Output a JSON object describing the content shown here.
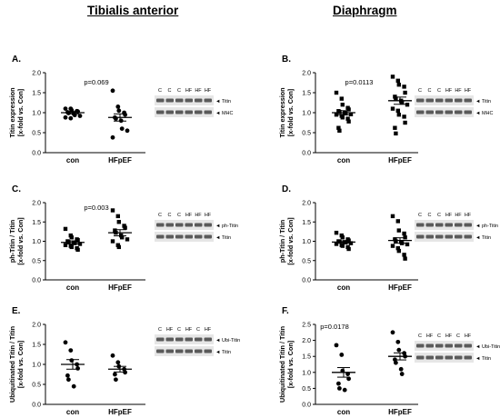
{
  "column_titles": [
    "Tibialis anterior",
    "Diaphragm"
  ],
  "colors": {
    "points": "#000000",
    "axes": "#000000",
    "blot_band": "#5a5a5a",
    "blot_background": "#e6e6e6"
  },
  "chart_data": [
    {
      "id": "A",
      "panel_label": "A.",
      "type": "scatter",
      "marker": "circle",
      "categories": [
        "con",
        "HFpEF"
      ],
      "ylabel": [
        "Titin expression",
        "[x-fold vs. Con]"
      ],
      "ylim": [
        0,
        2.0
      ],
      "yticks": [
        0.0,
        0.5,
        1.0,
        1.5,
        2.0
      ],
      "annotation": "p=0.069",
      "series": [
        {
          "category": "con",
          "values": [
            1.1,
            1.1,
            1.06,
            1.04,
            1.03,
            1.01,
            0.99,
            0.97,
            0.94,
            0.92,
            0.88,
            0.86
          ],
          "mean": 1.0,
          "sem": 0.03
        },
        {
          "category": "HFpEF",
          "values": [
            1.55,
            1.15,
            1.05,
            1.0,
            0.95,
            0.88,
            0.85,
            0.8,
            0.6,
            0.55,
            0.38
          ],
          "mean": 0.88,
          "sem": 0.09
        }
      ],
      "blot": {
        "lanes": [
          "C",
          "C",
          "C",
          "HF",
          "HF",
          "HF"
        ],
        "bands": [
          "Titin",
          "MHC"
        ]
      }
    },
    {
      "id": "B",
      "panel_label": "B.",
      "type": "scatter",
      "marker": "square",
      "categories": [
        "con",
        "HFpEF"
      ],
      "ylabel": [
        "Titin expression",
        "[x-fold vs. Con]"
      ],
      "ylim": [
        0,
        2.0
      ],
      "yticks": [
        0.0,
        0.5,
        1.0,
        1.5,
        2.0
      ],
      "annotation": "p=0.0113",
      "series": [
        {
          "category": "con",
          "values": [
            1.5,
            1.35,
            1.2,
            1.12,
            1.08,
            1.04,
            1.02,
            1.0,
            0.98,
            0.96,
            0.95,
            0.92,
            0.88,
            0.85,
            0.78,
            0.62,
            0.55
          ],
          "mean": 1.0,
          "sem": 0.05
        },
        {
          "category": "HFpEF",
          "values": [
            1.9,
            1.8,
            1.7,
            1.65,
            1.5,
            1.4,
            1.35,
            1.3,
            1.25,
            1.2,
            1.1,
            1.05,
            0.95,
            0.9,
            0.75,
            0.62,
            0.48
          ],
          "mean": 1.3,
          "sem": 0.09
        }
      ],
      "blot": {
        "lanes": [
          "C",
          "C",
          "C",
          "HF",
          "HF",
          "HF"
        ],
        "bands": [
          "Titin",
          "MHC"
        ]
      }
    },
    {
      "id": "C",
      "panel_label": "C.",
      "type": "scatter",
      "marker": "square",
      "categories": [
        "con",
        "HFpEF"
      ],
      "ylabel": [
        "ph-Titin / Titin",
        "[x-fold vs. Con]"
      ],
      "ylim": [
        0,
        2.0
      ],
      "yticks": [
        0.0,
        0.5,
        1.0,
        1.5,
        2.0
      ],
      "annotation": "p=0.003",
      "series": [
        {
          "category": "con",
          "values": [
            1.32,
            1.15,
            1.1,
            1.05,
            1.03,
            1.0,
            0.98,
            0.97,
            0.95,
            0.93,
            0.9,
            0.88,
            0.85,
            0.82,
            0.78
          ],
          "mean": 0.97,
          "sem": 0.04
        },
        {
          "category": "HFpEF",
          "values": [
            1.8,
            1.65,
            1.5,
            1.4,
            1.35,
            1.28,
            1.22,
            1.15,
            1.1,
            1.05,
            1.0,
            0.9,
            0.85
          ],
          "mean": 1.22,
          "sem": 0.08
        }
      ],
      "blot": {
        "lanes": [
          "C",
          "C",
          "C",
          "HF",
          "HF",
          "HF"
        ],
        "bands": [
          "ph-Titin",
          "Titin"
        ]
      }
    },
    {
      "id": "D",
      "panel_label": "D.",
      "type": "scatter",
      "marker": "square",
      "categories": [
        "con",
        "HFpEF"
      ],
      "ylabel": [
        "ph-Titin / Titin",
        "[x-fold vs. Con]"
      ],
      "ylim": [
        0,
        2.0
      ],
      "yticks": [
        0.0,
        0.5,
        1.0,
        1.5,
        2.0
      ],
      "annotation": "",
      "series": [
        {
          "category": "con",
          "values": [
            1.22,
            1.15,
            1.1,
            1.05,
            1.02,
            1.0,
            0.99,
            0.98,
            0.97,
            0.95,
            0.93,
            0.9,
            0.88,
            0.85,
            0.8
          ],
          "mean": 0.98,
          "sem": 0.03
        },
        {
          "category": "HFpEF",
          "values": [
            1.65,
            1.52,
            1.28,
            1.2,
            1.1,
            1.05,
            1.0,
            0.98,
            0.95,
            0.92,
            0.88,
            0.82,
            0.75,
            0.65,
            0.55
          ],
          "mean": 1.02,
          "sem": 0.07
        }
      ],
      "blot": {
        "lanes": [
          "C",
          "C",
          "C",
          "HF",
          "HF",
          "HF"
        ],
        "bands": [
          "ph-Titin",
          "Titin"
        ]
      }
    },
    {
      "id": "E",
      "panel_label": "E.",
      "type": "scatter",
      "marker": "circle",
      "categories": [
        "con",
        "HFpEF"
      ],
      "ylabel": [
        "Ubiquitinated Titin / Titin",
        "[x-fold vs. Con]"
      ],
      "ylim": [
        0,
        2.0
      ],
      "yticks": [
        0.0,
        0.5,
        1.0,
        1.5,
        2.0
      ],
      "annotation": "",
      "series": [
        {
          "category": "con",
          "values": [
            1.55,
            1.35,
            1.1,
            1.0,
            0.9,
            0.72,
            0.62,
            0.45
          ],
          "mean": 1.0,
          "sem": 0.12
        },
        {
          "category": "HFpEF",
          "values": [
            1.22,
            1.05,
            0.95,
            0.88,
            0.8,
            0.75,
            0.62
          ],
          "mean": 0.88,
          "sem": 0.07
        }
      ],
      "blot": {
        "lanes": [
          "C",
          "HF",
          "C",
          "HF",
          "C",
          "HF"
        ],
        "bands": [
          "Ubi-Titin",
          "Titin"
        ]
      }
    },
    {
      "id": "F",
      "panel_label": "F.",
      "type": "scatter",
      "marker": "circle",
      "categories": [
        "con",
        "HFpEF"
      ],
      "ylabel": [
        "Ubiquitinated Titin / Titin",
        "[x-fold vs. Con]"
      ],
      "ylim": [
        0,
        2.5
      ],
      "yticks": [
        0.0,
        0.5,
        1.0,
        1.5,
        2.0,
        2.5
      ],
      "annotation": "p=0.0178",
      "series": [
        {
          "category": "con",
          "values": [
            1.85,
            1.55,
            1.05,
            0.95,
            0.8,
            0.65,
            0.5,
            0.45
          ],
          "mean": 1.0,
          "sem": 0.15
        },
        {
          "category": "HFpEF",
          "values": [
            2.25,
            1.95,
            1.7,
            1.6,
            1.5,
            1.4,
            1.3,
            1.1,
            0.95
          ],
          "mean": 1.5,
          "sem": 0.11
        }
      ],
      "blot": {
        "lanes": [
          "C",
          "HF",
          "C",
          "HF",
          "C",
          "HF"
        ],
        "bands": [
          "Ubi-Titin",
          "Titin"
        ]
      }
    }
  ]
}
